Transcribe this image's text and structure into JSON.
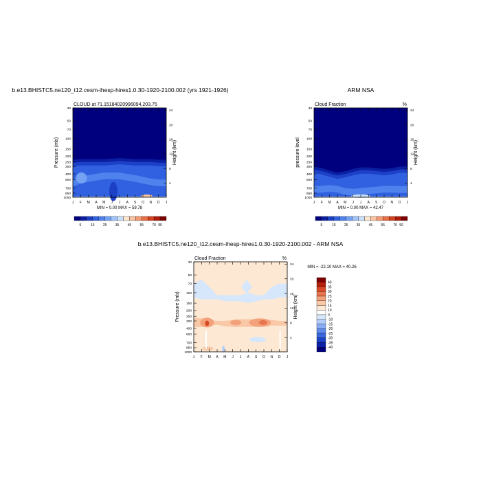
{
  "colors": {
    "cloud_scale": [
      "#00007f",
      "#0b1fa3",
      "#1c40c6",
      "#3161e0",
      "#4f82ec",
      "#74a2f3",
      "#a1c3f8",
      "#c9def9",
      "#fde4cc",
      "#f8c3a1",
      "#f29a73",
      "#e76f46",
      "#d3421f",
      "#b01a0a",
      "#7f0000"
    ],
    "diff_scale": [
      "#00007f",
      "#0b22a8",
      "#1c42c9",
      "#3a66e0",
      "#5f8aee",
      "#8aaef6",
      "#b4cdfa",
      "#d6e7fb",
      "#ffffff",
      "#fde8d3",
      "#f9c8a6",
      "#f3a17a",
      "#e9744d",
      "#d84a26",
      "#b8200e",
      "#7f0000"
    ]
  },
  "chart_data": [
    {
      "type": "heatmap",
      "title": "b.e13.BHISTC5.ne120_t12.cesm-ihesp-hires1.0.30-1920-2100.002 (yrs 1921-1926)",
      "left_string": "CLOUD at 71.15184020996094,203.75",
      "right_string": "",
      "ylabel": "Pressure (mb)",
      "right_ylabel": "Height (km)",
      "stats": "MIN =   0.00 MAX =  59.78",
      "x": [
        "J",
        "F",
        "M",
        "A",
        "M",
        "J",
        "J",
        "A",
        "S",
        "O",
        "N",
        "D",
        "J"
      ],
      "y": [
        30,
        50,
        70,
        100,
        150,
        200,
        250,
        300,
        400,
        500,
        700,
        850,
        1000
      ],
      "height_ticks": [
        "24",
        "20",
        "16",
        "12",
        "8",
        "4"
      ],
      "levels": [
        5,
        15,
        25,
        35,
        45,
        55,
        70,
        90
      ],
      "cloud_top_mb": [
        230,
        225,
        225,
        225,
        225,
        220,
        215,
        220,
        225,
        225,
        225,
        230,
        230
      ],
      "interior_mb": [
        500,
        450,
        420,
        400,
        380,
        380,
        380,
        400,
        420,
        450,
        480,
        500,
        500
      ],
      "colorbar_labels": [
        "5",
        "15",
        "25",
        "35",
        "45",
        "55",
        "70",
        "90"
      ]
    },
    {
      "type": "heatmap",
      "title": "ARM NSA",
      "left_string": "Cloud Fraction",
      "right_string": "%",
      "ylabel": "pressure level",
      "right_ylabel": "Height (km)",
      "stats": "MIN =   0.00 MAX =  42.47",
      "x": [
        "J",
        "F",
        "M",
        "A",
        "M",
        "J",
        "J",
        "A",
        "S",
        "O",
        "N",
        "D",
        "J"
      ],
      "y": [
        30,
        50,
        70,
        100,
        150,
        200,
        250,
        300,
        400,
        500,
        700,
        850,
        1000
      ],
      "height_ticks": [
        "24",
        "20",
        "16",
        "12",
        "8",
        "4"
      ],
      "levels": [
        5,
        15,
        25,
        35,
        45,
        55,
        70,
        90
      ],
      "cloud_top_mb": [
        300,
        320,
        350,
        380,
        360,
        330,
        310,
        310,
        320,
        330,
        320,
        300,
        300
      ],
      "interior_mb": [
        650,
        640,
        620,
        640,
        700,
        720,
        700,
        680,
        660,
        640,
        640,
        650,
        650
      ],
      "colorbar_labels": [
        "5",
        "15",
        "25",
        "35",
        "45",
        "55",
        "70",
        "90"
      ]
    },
    {
      "type": "heatmap",
      "title": "b.e13.BHISTC5.ne120_t12.cesm-ihesp-hires1.0.30-1920-2100.002 - ARM NSA",
      "left_string": "Cloud Fraction",
      "right_string": "%",
      "ylabel": "Pressure (mb)",
      "right_ylabel": "Height (km)",
      "stats": "MIN = -22.10 MAX =  40.26",
      "x": [
        "J",
        "F",
        "M",
        "A",
        "M",
        "J",
        "J",
        "A",
        "S",
        "O",
        "N",
        "D",
        "J"
      ],
      "y": [
        30,
        50,
        70,
        100,
        150,
        200,
        250,
        300,
        400,
        500,
        700,
        850,
        1000
      ],
      "height_ticks": [
        "24",
        "20",
        "16",
        "12",
        "8",
        "4"
      ],
      "levels": [
        -40,
        -35,
        -30,
        -25,
        -20,
        -15,
        -10,
        -5,
        0,
        5,
        10,
        15,
        20,
        25,
        30,
        35,
        40
      ],
      "colorbar_labels": [
        "40",
        "35",
        "30",
        "25",
        "20",
        "15",
        "10",
        "0",
        "-10",
        "-15",
        "-20",
        "-25",
        "-30",
        "-35",
        "-40"
      ]
    }
  ]
}
